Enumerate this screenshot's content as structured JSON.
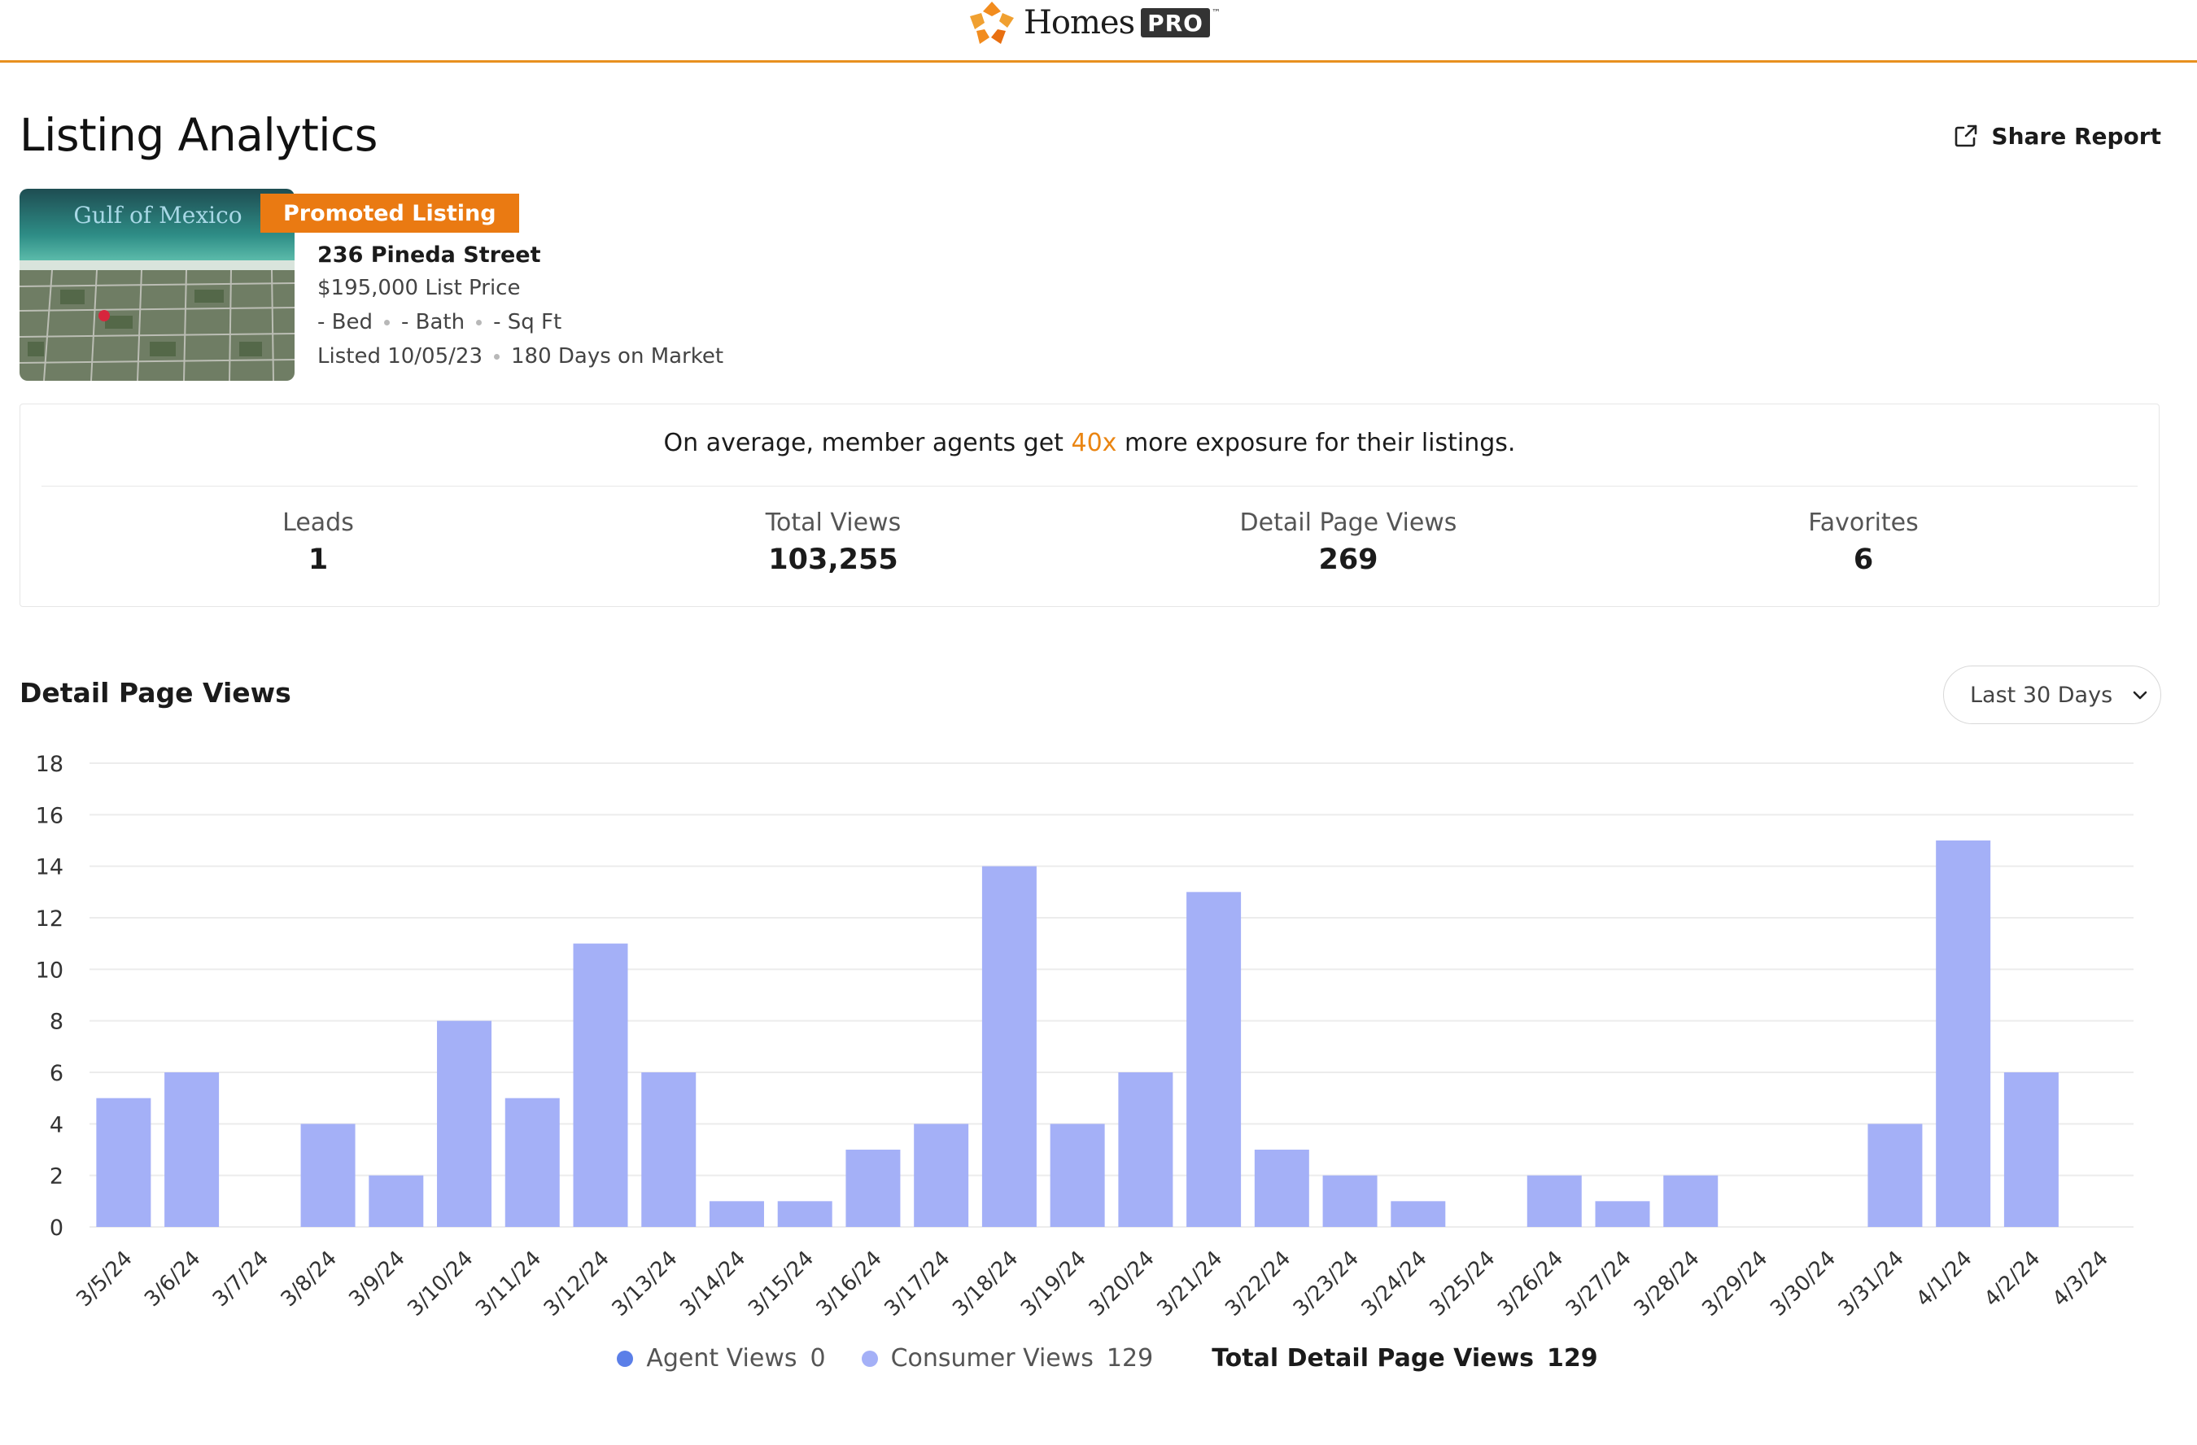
{
  "brand": {
    "name": "Homes",
    "badge": "PRO",
    "trademark": "™",
    "accent_color": "#e8901f"
  },
  "page": {
    "title": "Listing Analytics",
    "share_label": "Share Report"
  },
  "listing": {
    "photo_caption": "Gulf of Mexico",
    "badge": "Promoted Listing",
    "address": "236 Pineda Street",
    "price": "$195,000 List Price",
    "bed": "- Bed",
    "bath": "- Bath",
    "sqft": "- Sq Ft",
    "listed": "Listed 10/05/23",
    "days_on_market": "180 Days on Market"
  },
  "stats": {
    "promo_before": "On average, member agents get ",
    "promo_highlight": "40x",
    "promo_after": " more exposure for their listings.",
    "items": [
      {
        "label": "Leads",
        "value": "1"
      },
      {
        "label": "Total Views",
        "value": "103,255"
      },
      {
        "label": "Detail Page Views",
        "value": "269"
      },
      {
        "label": "Favorites",
        "value": "6"
      }
    ]
  },
  "chart_section": {
    "title": "Detail Page Views",
    "range": "Last 30 Days"
  },
  "chart_data": {
    "type": "bar",
    "title": "Detail Page Views",
    "categories": [
      "3/5/24",
      "3/6/24",
      "3/7/24",
      "3/8/24",
      "3/9/24",
      "3/10/24",
      "3/11/24",
      "3/12/24",
      "3/13/24",
      "3/14/24",
      "3/15/24",
      "3/16/24",
      "3/17/24",
      "3/18/24",
      "3/19/24",
      "3/20/24",
      "3/21/24",
      "3/22/24",
      "3/23/24",
      "3/24/24",
      "3/25/24",
      "3/26/24",
      "3/27/24",
      "3/28/24",
      "3/29/24",
      "3/30/24",
      "3/31/24",
      "4/1/24",
      "4/2/24",
      "4/3/24"
    ],
    "series": [
      {
        "name": "Consumer Views",
        "color": "#a4b0f7",
        "values": [
          5,
          6,
          0,
          4,
          2,
          8,
          5,
          11,
          6,
          1,
          1,
          3,
          4,
          14,
          4,
          6,
          13,
          3,
          2,
          1,
          0,
          2,
          1,
          2,
          0,
          0,
          4,
          15,
          6,
          0
        ]
      }
    ],
    "yticks": [
      0,
      2,
      4,
      6,
      8,
      10,
      12,
      14,
      16,
      18
    ],
    "ylim": [
      0,
      18
    ],
    "grid": true
  },
  "legend": {
    "items": [
      {
        "label": "Agent Views",
        "value": "0",
        "color": "#5b7fe8"
      },
      {
        "label": "Consumer Views",
        "value": "129",
        "color": "#a4b0f7"
      }
    ],
    "total_label": "Total Detail Page Views",
    "total_value": "129"
  }
}
